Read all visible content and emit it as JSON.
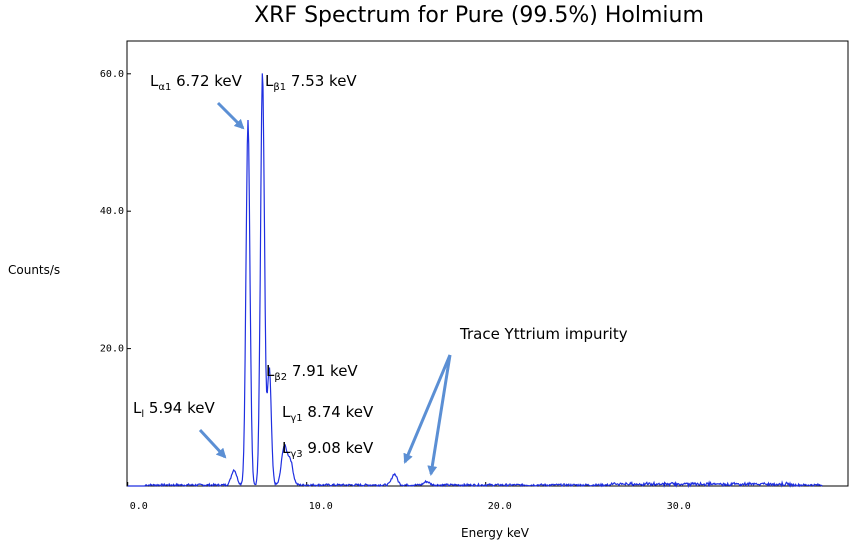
{
  "chart_data": {
    "type": "line",
    "title": "XRF Spectrum for Pure (99.5%) Holmium",
    "xlabel": "Energy keV",
    "ylabel": "Counts/s",
    "xlim": [
      0,
      40
    ],
    "ylim": [
      0,
      65
    ],
    "x_ticks": [
      {
        "value": 0,
        "label": "0.0"
      },
      {
        "value": 10,
        "label": "10.0"
      },
      {
        "value": 20,
        "label": "20.0"
      },
      {
        "value": 30,
        "label": "30.0"
      }
    ],
    "y_ticks": [
      {
        "value": 20,
        "label": "20.0"
      },
      {
        "value": 40,
        "label": "40.0"
      },
      {
        "value": 60,
        "label": "60.0"
      }
    ],
    "grid": false,
    "series": [
      {
        "color": "#1f2fe0",
        "peaks": [
          {
            "energy": 5.94,
            "counts": 2.2
          },
          {
            "energy": 6.72,
            "counts": 53
          },
          {
            "energy": 7.53,
            "counts": 60
          },
          {
            "energy": 7.91,
            "counts": 17
          },
          {
            "energy": 8.74,
            "counts": 5.5
          },
          {
            "energy": 9.08,
            "counts": 3.5
          },
          {
            "energy": 14.9,
            "counts": 1.6
          },
          {
            "energy": 16.7,
            "counts": 0.5
          }
        ],
        "background": 0.3
      }
    ],
    "annotations": [
      {
        "main": "L",
        "sub": "α1",
        "rest": " 6.72 keV",
        "energy": 6.72
      },
      {
        "main": "L",
        "sub": "β1",
        "rest": " 7.53 keV",
        "energy": 7.53
      },
      {
        "main": "L",
        "sub": "β2",
        "rest": " 7.91 keV",
        "energy": 7.91
      },
      {
        "main": "L",
        "sub": "γ1",
        "rest": " 8.74 keV",
        "energy": 8.74
      },
      {
        "main": "L",
        "sub": "γ3",
        "rest": " 9.08 keV",
        "energy": 9.08
      },
      {
        "main": "L",
        "sub": "l",
        "rest": " 5.94 keV",
        "energy": 5.94
      },
      {
        "main": "Trace Yttrium impurity",
        "sub": "",
        "rest": "",
        "energy": 14.9
      }
    ]
  }
}
